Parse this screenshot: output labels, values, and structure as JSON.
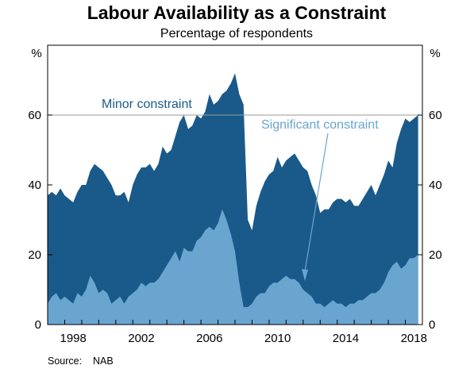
{
  "chart_data": {
    "type": "area",
    "title": "Labour Availability as a Constraint",
    "subtitle": "Percentage of respondents",
    "unit_left": "%",
    "unit_right": "%",
    "source": "Source:    NAB",
    "xlim": [
      1997.0,
      2019.0
    ],
    "ylim": [
      0,
      80
    ],
    "yticks": [
      0,
      20,
      40,
      60
    ],
    "ytick_labels": [
      "0",
      "20",
      "40",
      "60"
    ],
    "xticks": [
      1998,
      2002,
      2006,
      2010,
      2014,
      2018
    ],
    "xtick_labels": [
      "1998",
      "2002",
      "2006",
      "2010",
      "2014",
      "2018"
    ],
    "grid": "horizontal line at 60",
    "legend": "direct labels",
    "x": [
      1997.0,
      1997.25,
      1997.5,
      1997.75,
      1998.0,
      1998.25,
      1998.5,
      1998.75,
      1999.0,
      1999.25,
      1999.5,
      1999.75,
      2000.0,
      2000.25,
      2000.5,
      2000.75,
      2001.0,
      2001.25,
      2001.5,
      2001.75,
      2002.0,
      2002.25,
      2002.5,
      2002.75,
      2003.0,
      2003.25,
      2003.5,
      2003.75,
      2004.0,
      2004.25,
      2004.5,
      2004.75,
      2005.0,
      2005.25,
      2005.5,
      2005.75,
      2006.0,
      2006.25,
      2006.5,
      2006.75,
      2007.0,
      2007.25,
      2007.5,
      2007.75,
      2008.0,
      2008.25,
      2008.5,
      2008.75,
      2009.0,
      2009.25,
      2009.5,
      2009.75,
      2010.0,
      2010.25,
      2010.5,
      2010.75,
      2011.0,
      2011.25,
      2011.5,
      2011.75,
      2012.0,
      2012.25,
      2012.5,
      2012.75,
      2013.0,
      2013.25,
      2013.5,
      2013.75,
      2014.0,
      2014.25,
      2014.5,
      2014.75,
      2015.0,
      2015.25,
      2015.5,
      2015.75,
      2016.0,
      2016.25,
      2016.5,
      2016.75,
      2017.0,
      2017.25,
      2017.5,
      2017.75,
      2018.0,
      2018.25,
      2018.5,
      2018.75
    ],
    "series": [
      {
        "name": "Minor constraint",
        "color": "#1a5a8a",
        "values": [
          37,
          38,
          37,
          39,
          37,
          36,
          35,
          38,
          40,
          40,
          44,
          46,
          45,
          44,
          42,
          40,
          37,
          37,
          38,
          35,
          40,
          43,
          45,
          45,
          46,
          44,
          46,
          51,
          49,
          50,
          54,
          58,
          60,
          56,
          57,
          60,
          59,
          61,
          66,
          63,
          64,
          66,
          67,
          69,
          72,
          66,
          63,
          30,
          27,
          34,
          38,
          41,
          43,
          44,
          48,
          45,
          47,
          48,
          49,
          47,
          45,
          44,
          40,
          37,
          32,
          33,
          33,
          35,
          36,
          36,
          35,
          36,
          34,
          34,
          36,
          38,
          40,
          37,
          40,
          43,
          47,
          45,
          52,
          56,
          59,
          58,
          59,
          60
        ]
      },
      {
        "name": "Significant constraint",
        "color": "#6aa5d0",
        "values": [
          6,
          8,
          9,
          7,
          8,
          7,
          6,
          9,
          8,
          10,
          14,
          12,
          9,
          10,
          9,
          6,
          7,
          8,
          6,
          8,
          9,
          10,
          12,
          11,
          12,
          12,
          13,
          15,
          17,
          19,
          21,
          18,
          22,
          21,
          21,
          24,
          25,
          27,
          28,
          27,
          29,
          33,
          30,
          26,
          21,
          12,
          5,
          5,
          6,
          8,
          9,
          9,
          11,
          12,
          12,
          13,
          14,
          13,
          13,
          12,
          10,
          9,
          8,
          6,
          6,
          5,
          6,
          7,
          6,
          6,
          5,
          6,
          6,
          7,
          7,
          8,
          9,
          9,
          10,
          12,
          15,
          17,
          18,
          16,
          17,
          19,
          19,
          20
        ]
      }
    ],
    "annotations": [
      {
        "text": "Minor constraint",
        "color": "#1a5a8a"
      },
      {
        "text": "Significant constraint",
        "color": "#6aa5d0"
      }
    ]
  },
  "colors": {
    "minor": "#1a5a8a",
    "significant": "#6aa5d0",
    "annot_minor": "#1a5a8a",
    "annot_significant": "#6aa5d0",
    "arrow": "#6aa5d0"
  }
}
